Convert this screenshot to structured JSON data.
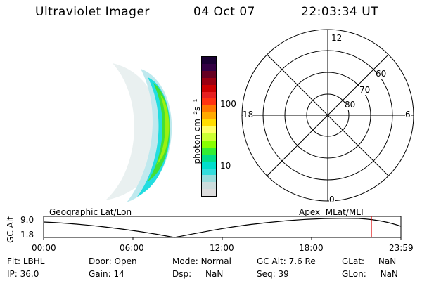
{
  "header": {
    "title": "Ultraviolet Imager",
    "date": "04 Oct 07",
    "time": "22:03:34 UT"
  },
  "colorbar": {
    "unit_label": "photon cm⁻²s⁻¹",
    "tick_100": "100",
    "tick_10": "10",
    "colors": [
      "#1a0033",
      "#330044",
      "#660022",
      "#990011",
      "#cc0000",
      "#e62020",
      "#ff3311",
      "#ff7700",
      "#ffaa00",
      "#ffdd00",
      "#ffff66",
      "#ccff33",
      "#88ff00",
      "#33ee33",
      "#00dd88",
      "#00ddcc",
      "#33dddd",
      "#99dddd",
      "#ccdddd",
      "#dddddd"
    ]
  },
  "polar_plot": {
    "mlt_labels": {
      "top": "12",
      "left": "18",
      "right": "6",
      "bottom": "0"
    },
    "lat_labels": [
      "60",
      "70",
      "80"
    ]
  },
  "timeline": {
    "left_label": "Geographic Lat/Lon",
    "right_label": "Apex  MLat/MLT",
    "axis_title": "GC Alt",
    "y_top": "9.0",
    "y_bottom": "1.8",
    "x_ticks": [
      "00:00",
      "06:00",
      "12:00",
      "18:00",
      "23:59"
    ],
    "current_marker_color": "#dd0000"
  },
  "info": {
    "flt": {
      "label": "Flt:",
      "value": "LBHL"
    },
    "ip": {
      "label": "IP:",
      "value": "36.0"
    },
    "door": {
      "label": "Door:",
      "value": "Open"
    },
    "gain": {
      "label": "Gain:",
      "value": "14"
    },
    "mode": {
      "label": "Mode:",
      "value": "Normal"
    },
    "dsp": {
      "label": "Dsp:",
      "value": "NaN"
    },
    "gcalt": {
      "label": "GC Alt:",
      "value": "7.6 Re"
    },
    "seq": {
      "label": "Seq:",
      "value": "39"
    },
    "glat": {
      "label": "GLat:",
      "value": "NaN"
    },
    "glon": {
      "label": "GLon:",
      "value": "NaN"
    }
  }
}
